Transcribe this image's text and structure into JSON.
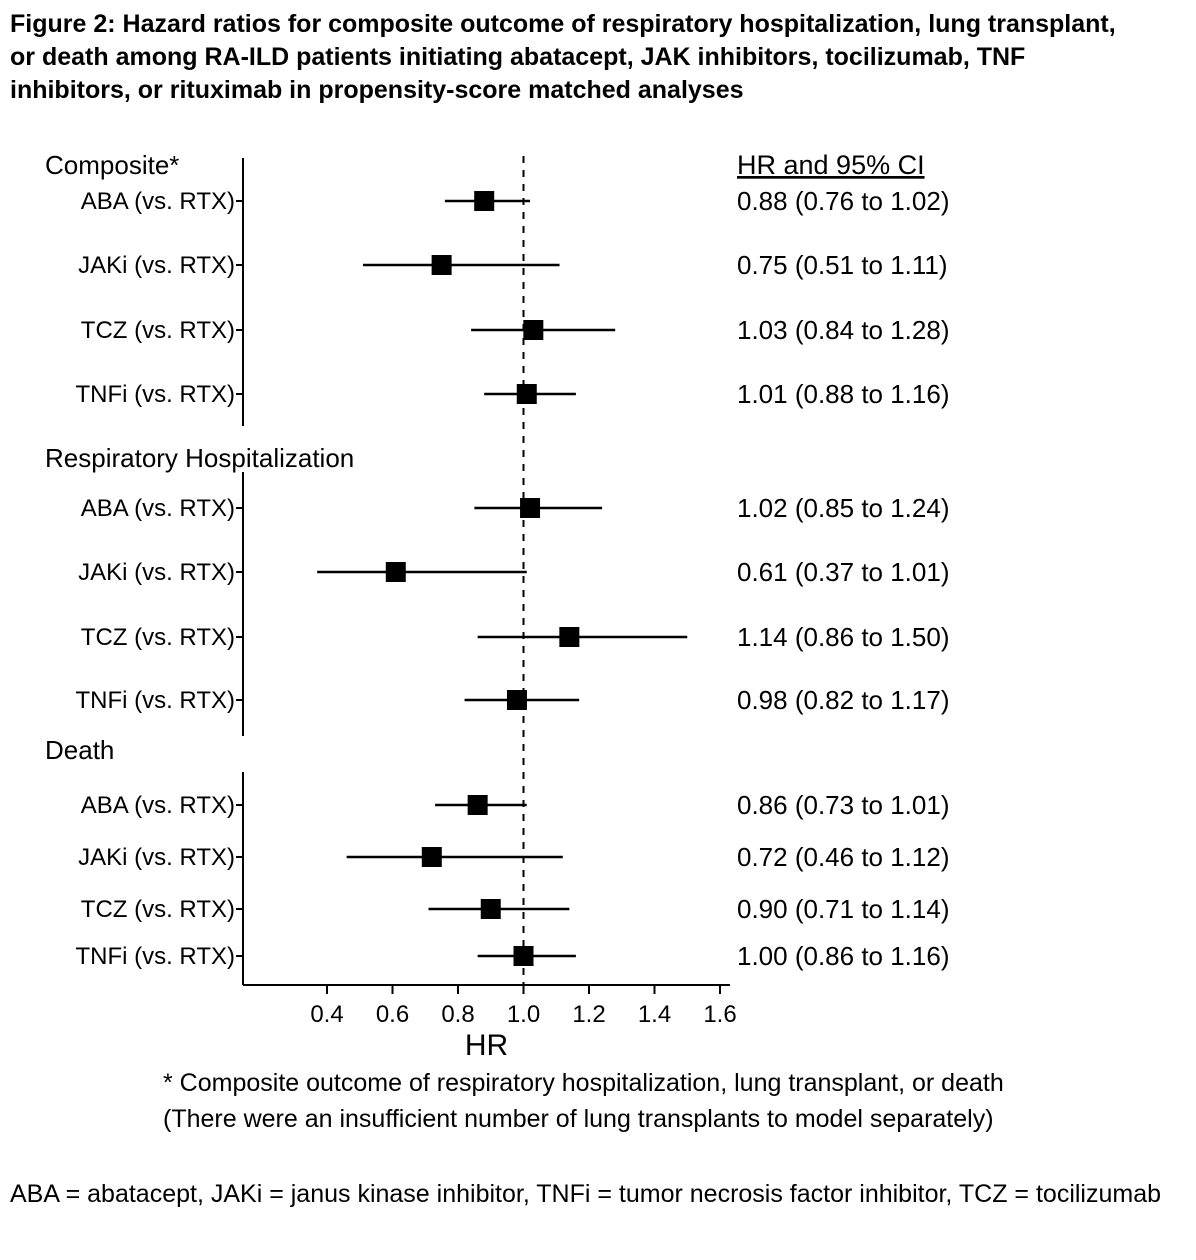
{
  "title": "Figure 2: Hazard ratios for composite outcome of respiratory hospitalization, lung transplant, or death among RA-ILD patients initiating abatacept, JAK inhibitors, tocilizumab, TNF inhibitors, or rituximab in propensity-score matched analyses",
  "footnotes": [
    "* Composite outcome of respiratory hospitalization, lung transplant, or death",
    "(There were an insufficient number of lung transplants to model separately)"
  ],
  "abbreviations": "ABA = abatacept, JAKi = janus kinase inhibitor, TNFi = tumor necrosis factor inhibitor, TCZ = tocilizumab",
  "chart_data": {
    "type": "forest",
    "xlabel": "HR",
    "right_column_header": "HR and 95% CI",
    "x_ticks": [
      "0.4",
      "0.6",
      "0.8",
      "1.0",
      "1.2",
      "1.4",
      "1.6"
    ],
    "xlim": [
      0.3,
      1.65
    ],
    "reference_line": 1.0,
    "grid": false,
    "marker": "square",
    "marker_color": "#000000",
    "groups": [
      {
        "label": "Composite*",
        "rows": [
          {
            "label": "ABA (vs. RTX)",
            "hr": 0.88,
            "lo": 0.76,
            "hi": 1.02,
            "text": "0.88 (0.76 to 1.02)"
          },
          {
            "label": "JAKi (vs. RTX)",
            "hr": 0.75,
            "lo": 0.51,
            "hi": 1.11,
            "text": "0.75 (0.51 to 1.11)"
          },
          {
            "label": "TCZ (vs. RTX)",
            "hr": 1.03,
            "lo": 0.84,
            "hi": 1.28,
            "text": "1.03 (0.84 to 1.28)"
          },
          {
            "label": "TNFi (vs. RTX)",
            "hr": 1.01,
            "lo": 0.88,
            "hi": 1.16,
            "text": "1.01 (0.88 to 1.16)"
          }
        ]
      },
      {
        "label": "Respiratory Hospitalization",
        "rows": [
          {
            "label": "ABA (vs. RTX)",
            "hr": 1.02,
            "lo": 0.85,
            "hi": 1.24,
            "text": "1.02 (0.85 to 1.24)"
          },
          {
            "label": "JAKi (vs. RTX)",
            "hr": 0.61,
            "lo": 0.37,
            "hi": 1.01,
            "text": "0.61 (0.37 to 1.01)"
          },
          {
            "label": "TCZ (vs. RTX)",
            "hr": 1.14,
            "lo": 0.86,
            "hi": 1.5,
            "text": "1.14 (0.86 to 1.50)"
          },
          {
            "label": "TNFi (vs. RTX)",
            "hr": 0.98,
            "lo": 0.82,
            "hi": 1.17,
            "text": "0.98 (0.82 to 1.17)"
          }
        ]
      },
      {
        "label": "Death",
        "rows": [
          {
            "label": "ABA (vs. RTX)",
            "hr": 0.86,
            "lo": 0.73,
            "hi": 1.01,
            "text": "0.86 (0.73 to 1.01)"
          },
          {
            "label": "JAKi (vs. RTX)",
            "hr": 0.72,
            "lo": 0.46,
            "hi": 1.12,
            "text": "0.72 (0.46 to 1.12)"
          },
          {
            "label": "TCZ (vs. RTX)",
            "hr": 0.9,
            "lo": 0.71,
            "hi": 1.14,
            "text": "0.90 (0.71 to 1.14)"
          },
          {
            "label": "TNFi (vs. RTX)",
            "hr": 1.0,
            "lo": 0.86,
            "hi": 1.16,
            "text": "1.00 (0.86 to 1.16)"
          }
        ]
      }
    ]
  }
}
